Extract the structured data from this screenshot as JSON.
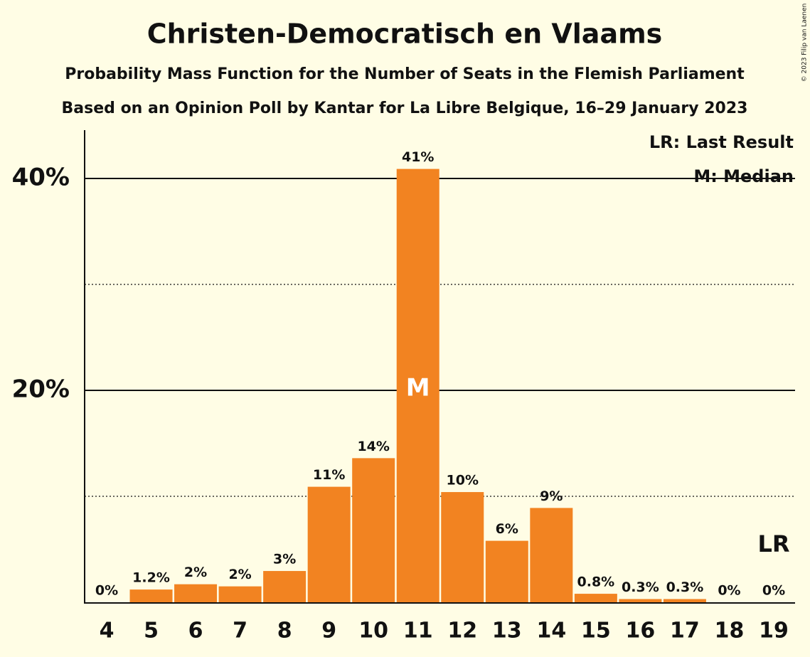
{
  "chart_data": {
    "type": "bar",
    "title": "Christen-Democratisch en Vlaams",
    "subtitle": "Probability Mass Function for the Number of Seats in the Flemish Parliament",
    "subtitle2": "Based on an Opinion Poll by Kantar for La Libre Belgique, 16–29 January 2023",
    "credit": "© 2023 Filip van Laenen",
    "categories": [
      "4",
      "5",
      "6",
      "7",
      "8",
      "9",
      "10",
      "11",
      "12",
      "13",
      "14",
      "15",
      "16",
      "17",
      "18",
      "19"
    ],
    "values": [
      0,
      1.2,
      1.7,
      1.5,
      2.95,
      10.9,
      13.6,
      40.9,
      10.4,
      5.8,
      8.9,
      0.8,
      0.3,
      0.3,
      0,
      0
    ],
    "value_labels": [
      "0%",
      "1.2%",
      "2%",
      "2%",
      "3%",
      "11%",
      "14%",
      "41%",
      "10%",
      "6%",
      "9%",
      "0.8%",
      "0.3%",
      "0.3%",
      "0%",
      "0%"
    ],
    "color": "#f28321",
    "ylim": [
      0,
      45
    ],
    "yticks": [
      {
        "value": 20,
        "label": "20%"
      },
      {
        "value": 40,
        "label": "40%"
      }
    ],
    "minor_yticks": [
      10,
      30
    ],
    "grid": true,
    "median": "11",
    "median_marker": "M",
    "last_result": "19",
    "last_result_marker": "LR",
    "legend": [
      "LR: Last Result",
      "M: Median"
    ]
  }
}
